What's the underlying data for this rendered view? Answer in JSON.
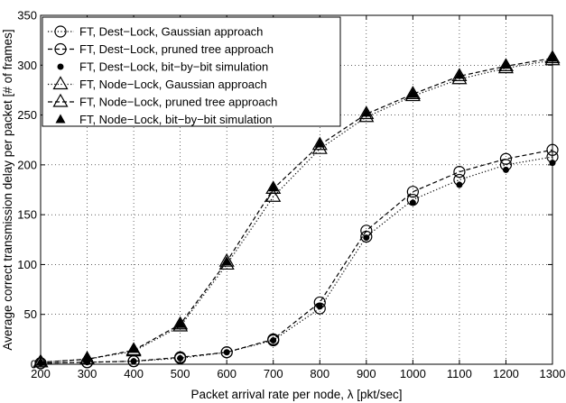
{
  "chart_data": {
    "type": "line",
    "title": "",
    "xlabel": "Packet arrival rate per node, λ [pkt/sec]",
    "ylabel": "Average correct transmission delay per packet [# of frames]",
    "xlim": [
      200,
      1300
    ],
    "ylim": [
      0,
      350
    ],
    "xticks": [
      200,
      300,
      400,
      500,
      600,
      700,
      800,
      900,
      1000,
      1100,
      1200,
      1300
    ],
    "yticks": [
      0,
      50,
      100,
      150,
      200,
      250,
      300,
      350
    ],
    "grid": true,
    "legend_position": "top-left",
    "x": [
      200,
      300,
      400,
      500,
      600,
      700,
      800,
      900,
      1000,
      1100,
      1200,
      1300
    ],
    "series": [
      {
        "name": "FT, Dest−Lock, Gaussian approach",
        "marker": "open-circle",
        "line": "dotted",
        "values": [
          1,
          2,
          3,
          6,
          12,
          24,
          56,
          128,
          165,
          185,
          200,
          208
        ]
      },
      {
        "name": "FT, Dest−Lock, pruned tree approach",
        "marker": "open-circle",
        "line": "dashed",
        "values": [
          1,
          2,
          3,
          7,
          12,
          25,
          62,
          134,
          173,
          193,
          206,
          215
        ]
      },
      {
        "name": "FT, Dest−Lock, bit−by−bit simulation",
        "marker": "filled-dot",
        "line": "none",
        "values": [
          1,
          2,
          3,
          6,
          12,
          24,
          58,
          127,
          162,
          180,
          195,
          202
        ]
      },
      {
        "name": "FT, Node−Lock, Gaussian approach",
        "marker": "open-triangle",
        "line": "dotted",
        "values": [
          2,
          5,
          13,
          38,
          100,
          168,
          216,
          248,
          269,
          286,
          297,
          305
        ]
      },
      {
        "name": "FT, Node−Lock, pruned tree approach",
        "marker": "open-triangle",
        "line": "dashed",
        "values": [
          2,
          5,
          14,
          40,
          103,
          176,
          220,
          251,
          271,
          289,
          299,
          307
        ]
      },
      {
        "name": "FT, Node−Lock, bit−by−bit simulation",
        "marker": "filled-triangle",
        "line": "none",
        "values": [
          2,
          6,
          15,
          40,
          103,
          177,
          221,
          252,
          271,
          290,
          300,
          307
        ]
      }
    ]
  }
}
